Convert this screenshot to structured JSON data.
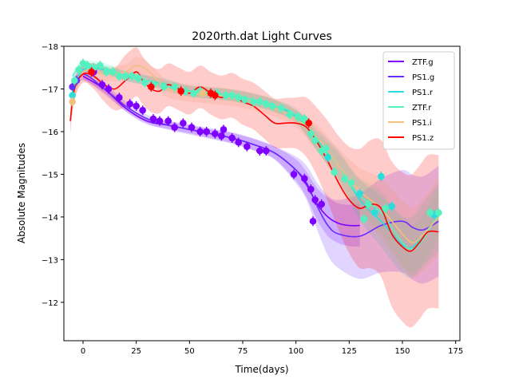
{
  "chart_data": {
    "type": "line",
    "title": "2020rth.dat Light Curves",
    "xlabel": "Time(days)",
    "ylabel": "Absolute Magnitudes",
    "xlim": [
      -9,
      177
    ],
    "ylim": [
      -18,
      -11.1
    ],
    "y_inverted": true,
    "xticks": [
      0,
      25,
      50,
      75,
      100,
      125,
      150,
      175
    ],
    "yticks": [
      -18,
      -17,
      -16,
      -15,
      -14,
      -13,
      -12
    ],
    "grid": false,
    "legend_position": "top-right",
    "series": [
      {
        "name": "ZTF.g",
        "color": "#8000ff",
        "curve": [
          [
            0,
            -17.3
          ],
          [
            10,
            -17.0
          ],
          [
            20,
            -16.55
          ],
          [
            30,
            -16.25
          ],
          [
            40,
            -16.15
          ],
          [
            50,
            -16.05
          ],
          [
            60,
            -15.95
          ],
          [
            70,
            -15.85
          ],
          [
            80,
            -15.7
          ],
          [
            90,
            -15.5
          ],
          [
            100,
            -15.1
          ],
          [
            105,
            -14.75
          ],
          [
            110,
            -14.3
          ],
          [
            115,
            -14.0
          ],
          [
            120,
            -13.85
          ],
          [
            125,
            -13.8
          ],
          [
            130,
            -13.8
          ]
        ],
        "band": [
          [
            0,
            0.08
          ],
          [
            30,
            0.08
          ],
          [
            60,
            0.1
          ],
          [
            90,
            0.15
          ],
          [
            105,
            0.3
          ],
          [
            115,
            0.45
          ],
          [
            130,
            0.5
          ]
        ],
        "points": [
          [
            5,
            -17.4
          ],
          [
            9,
            -17.1
          ],
          [
            12,
            -17.0
          ],
          [
            17,
            -16.8
          ],
          [
            22,
            -16.65
          ],
          [
            25,
            -16.6
          ],
          [
            28,
            -16.5
          ],
          [
            33,
            -16.3
          ],
          [
            36,
            -16.25
          ],
          [
            40,
            -16.25
          ],
          [
            43,
            -16.1
          ],
          [
            47,
            -16.2
          ],
          [
            51,
            -16.1
          ],
          [
            55,
            -16.0
          ],
          [
            58,
            -16.0
          ],
          [
            62,
            -15.95
          ],
          [
            65,
            -15.9
          ],
          [
            66,
            -16.05
          ],
          [
            70,
            -15.85
          ],
          [
            73,
            -15.75
          ],
          [
            77,
            -15.65
          ],
          [
            83,
            -15.55
          ],
          [
            86,
            -15.55
          ],
          [
            99,
            -15.0
          ],
          [
            104,
            -14.9
          ],
          [
            107,
            -14.65
          ],
          [
            109,
            -14.4
          ],
          [
            112,
            -14.3
          ],
          [
            108,
            -13.9
          ]
        ]
      },
      {
        "name": "PS1.g",
        "color": "#6a2cff",
        "curve": [
          [
            -5,
            -17.0
          ],
          [
            0,
            -17.35
          ],
          [
            10,
            -17.0
          ],
          [
            20,
            -16.6
          ],
          [
            30,
            -16.3
          ],
          [
            40,
            -16.15
          ],
          [
            50,
            -16.05
          ],
          [
            60,
            -15.95
          ],
          [
            70,
            -15.85
          ],
          [
            80,
            -15.7
          ],
          [
            90,
            -15.5
          ],
          [
            100,
            -15.1
          ],
          [
            105,
            -14.8
          ],
          [
            110,
            -14.25
          ],
          [
            115,
            -13.8
          ],
          [
            120,
            -13.6
          ],
          [
            130,
            -13.55
          ],
          [
            140,
            -13.8
          ],
          [
            150,
            -13.9
          ],
          [
            155,
            -13.75
          ],
          [
            160,
            -13.7
          ],
          [
            167,
            -13.9
          ]
        ],
        "band": [
          [
            -5,
            0.15
          ],
          [
            30,
            0.1
          ],
          [
            90,
            0.15
          ],
          [
            105,
            0.4
          ],
          [
            115,
            0.7
          ],
          [
            130,
            1.0
          ],
          [
            150,
            1.2
          ],
          [
            167,
            1.3
          ]
        ],
        "points": [
          [
            -5,
            -17.05
          ],
          [
            -3,
            -17.2
          ]
        ]
      },
      {
        "name": "PS1.r",
        "color": "#2adddd",
        "curve": [
          [
            -5,
            -16.9
          ],
          [
            0,
            -17.45
          ],
          [
            10,
            -17.45
          ],
          [
            20,
            -17.3
          ],
          [
            30,
            -17.2
          ],
          [
            40,
            -17.1
          ],
          [
            50,
            -16.95
          ],
          [
            60,
            -16.9
          ],
          [
            70,
            -16.85
          ],
          [
            80,
            -16.75
          ],
          [
            90,
            -16.6
          ],
          [
            100,
            -16.35
          ],
          [
            110,
            -15.8
          ],
          [
            120,
            -15.2
          ],
          [
            130,
            -14.4
          ],
          [
            140,
            -13.9
          ],
          [
            150,
            -13.35
          ],
          [
            155,
            -13.3
          ],
          [
            160,
            -13.6
          ],
          [
            167,
            -14.0
          ]
        ],
        "band": [
          [
            -5,
            0.1
          ],
          [
            100,
            0.15
          ],
          [
            120,
            0.35
          ],
          [
            140,
            0.6
          ],
          [
            167,
            0.8
          ]
        ],
        "points": [
          [
            -5,
            -16.85
          ],
          [
            115,
            -15.4
          ],
          [
            130,
            -14.55
          ],
          [
            137,
            -14.1
          ],
          [
            140,
            -14.95
          ],
          [
            145,
            -14.25
          ],
          [
            165,
            -14.05
          ]
        ]
      },
      {
        "name": "ZTF.r",
        "color": "#55f0c0",
        "curve": [
          [
            -5,
            -17.3
          ],
          [
            0,
            -17.55
          ],
          [
            10,
            -17.5
          ],
          [
            20,
            -17.3
          ],
          [
            30,
            -17.2
          ],
          [
            40,
            -17.05
          ],
          [
            50,
            -16.95
          ],
          [
            60,
            -16.9
          ],
          [
            70,
            -16.85
          ],
          [
            80,
            -16.75
          ],
          [
            90,
            -16.6
          ],
          [
            100,
            -16.4
          ],
          [
            110,
            -15.75
          ],
          [
            120,
            -15.2
          ],
          [
            125,
            -14.8
          ],
          [
            130,
            -14.5
          ],
          [
            140,
            -14.1
          ],
          [
            150,
            -13.4
          ],
          [
            155,
            -13.25
          ],
          [
            160,
            -13.5
          ],
          [
            167,
            -14.1
          ]
        ],
        "band": [
          [
            -5,
            0.1
          ],
          [
            100,
            0.15
          ],
          [
            120,
            0.3
          ],
          [
            140,
            0.5
          ],
          [
            167,
            0.6
          ]
        ],
        "points": [
          [
            -4,
            -17.2
          ],
          [
            -2,
            -17.45
          ],
          [
            0,
            -17.6
          ],
          [
            2,
            -17.55
          ],
          [
            5,
            -17.5
          ],
          [
            8,
            -17.55
          ],
          [
            11,
            -17.4
          ],
          [
            14,
            -17.4
          ],
          [
            17,
            -17.3
          ],
          [
            20,
            -17.3
          ],
          [
            23,
            -17.3
          ],
          [
            26,
            -17.25
          ],
          [
            29,
            -17.15
          ],
          [
            33,
            -17.1
          ],
          [
            38,
            -17.05
          ],
          [
            43,
            -17.05
          ],
          [
            48,
            -16.95
          ],
          [
            52,
            -16.9
          ],
          [
            55,
            -16.95
          ],
          [
            60,
            -16.9
          ],
          [
            63,
            -16.9
          ],
          [
            67,
            -16.85
          ],
          [
            70,
            -16.85
          ],
          [
            73,
            -16.8
          ],
          [
            76,
            -16.75
          ],
          [
            80,
            -16.7
          ],
          [
            83,
            -16.7
          ],
          [
            86,
            -16.65
          ],
          [
            89,
            -16.6
          ],
          [
            93,
            -16.55
          ],
          [
            97,
            -16.4
          ],
          [
            101,
            -16.35
          ],
          [
            104,
            -16.3
          ],
          [
            107,
            -15.95
          ],
          [
            109,
            -15.8
          ],
          [
            112,
            -15.55
          ],
          [
            114,
            -15.6
          ],
          [
            118,
            -15.05
          ],
          [
            123,
            -14.9
          ],
          [
            126,
            -14.8
          ],
          [
            132,
            -13.95
          ],
          [
            134,
            -14.3
          ],
          [
            142,
            -14.2
          ],
          [
            163,
            -14.1
          ],
          [
            167,
            -14.1
          ]
        ]
      },
      {
        "name": "PS1.i",
        "color": "#f0c080",
        "curve": [
          [
            -5,
            -16.7
          ],
          [
            0,
            -17.4
          ],
          [
            10,
            -17.35
          ],
          [
            20,
            -17.4
          ],
          [
            25,
            -17.55
          ],
          [
            30,
            -17.45
          ],
          [
            35,
            -17.2
          ],
          [
            40,
            -17.0
          ],
          [
            50,
            -16.9
          ],
          [
            60,
            -16.85
          ],
          [
            70,
            -16.8
          ],
          [
            80,
            -16.7
          ],
          [
            90,
            -16.55
          ],
          [
            100,
            -16.3
          ],
          [
            110,
            -15.85
          ],
          [
            120,
            -15.2
          ],
          [
            130,
            -14.6
          ],
          [
            140,
            -14.2
          ],
          [
            150,
            -13.6
          ],
          [
            155,
            -13.4
          ],
          [
            160,
            -13.6
          ],
          [
            167,
            -14.0
          ]
        ],
        "band": [
          [
            -5,
            0.15
          ],
          [
            30,
            0.2
          ],
          [
            100,
            0.2
          ],
          [
            120,
            0.4
          ],
          [
            140,
            0.7
          ],
          [
            167,
            0.9
          ]
        ],
        "points": [
          [
            -5,
            -16.7
          ],
          [
            56,
            -16.9
          ]
        ]
      },
      {
        "name": "PS1.z",
        "color": "#ff0000",
        "curve": [
          [
            -6,
            -16.25
          ],
          [
            -4,
            -17.0
          ],
          [
            0,
            -17.35
          ],
          [
            5,
            -17.3
          ],
          [
            10,
            -17.1
          ],
          [
            15,
            -17.0
          ],
          [
            20,
            -17.2
          ],
          [
            25,
            -17.4
          ],
          [
            28,
            -17.2
          ],
          [
            32,
            -17.0
          ],
          [
            36,
            -16.95
          ],
          [
            40,
            -17.1
          ],
          [
            45,
            -17.0
          ],
          [
            50,
            -16.9
          ],
          [
            55,
            -17.05
          ],
          [
            60,
            -16.9
          ],
          [
            65,
            -16.8
          ],
          [
            70,
            -16.85
          ],
          [
            75,
            -16.7
          ],
          [
            80,
            -16.6
          ],
          [
            85,
            -16.4
          ],
          [
            90,
            -16.2
          ],
          [
            95,
            -16.2
          ],
          [
            100,
            -16.2
          ],
          [
            105,
            -16.1
          ],
          [
            110,
            -15.75
          ],
          [
            115,
            -15.3
          ],
          [
            120,
            -14.8
          ],
          [
            125,
            -14.4
          ],
          [
            130,
            -14.2
          ],
          [
            135,
            -14.3
          ],
          [
            140,
            -14.2
          ],
          [
            145,
            -13.6
          ],
          [
            150,
            -13.3
          ],
          [
            154,
            -13.2
          ],
          [
            158,
            -13.4
          ],
          [
            162,
            -13.65
          ],
          [
            167,
            -13.65
          ]
        ],
        "band": [
          [
            -6,
            0.3
          ],
          [
            0,
            0.2
          ],
          [
            20,
            0.6
          ],
          [
            40,
            0.5
          ],
          [
            60,
            0.5
          ],
          [
            80,
            0.55
          ],
          [
            100,
            0.6
          ],
          [
            110,
            0.8
          ],
          [
            120,
            1.1
          ],
          [
            130,
            1.4
          ],
          [
            145,
            1.7
          ],
          [
            155,
            1.8
          ],
          [
            167,
            1.8
          ]
        ],
        "points": [
          [
            4,
            -17.4
          ],
          [
            32,
            -17.05
          ],
          [
            46,
            -16.95
          ],
          [
            60,
            -16.9
          ],
          [
            62,
            -16.85
          ],
          [
            106,
            -16.2
          ]
        ]
      }
    ]
  }
}
